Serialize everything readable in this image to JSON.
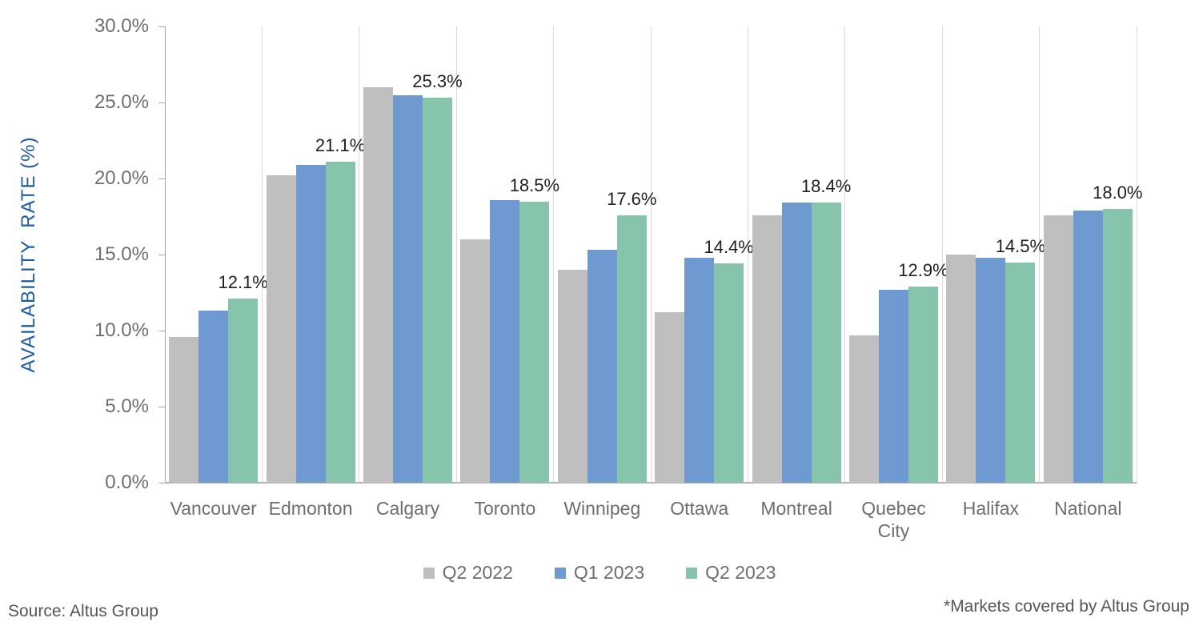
{
  "chart_data": {
    "type": "bar",
    "title": "",
    "xlabel": "",
    "ylabel": "AVAILABILITY  RATE (%)",
    "ylim": [
      0,
      30
    ],
    "ytick_step": 5,
    "ytick_labels": [
      "30.0%",
      "25.0%",
      "20.0%",
      "15.0%",
      "10.0%",
      "5.0%",
      "0.0%"
    ],
    "grid": "vertical-category-separators",
    "legend_position": "bottom",
    "categories": [
      "Vancouver",
      "Edmonton",
      "Calgary",
      "Toronto",
      "Winnipeg",
      "Ottawa",
      "Montreal",
      "Quebec City",
      "Halifax",
      "National"
    ],
    "series": [
      {
        "name": "Q2 2022",
        "color": "#bfbfbf",
        "values": [
          9.6,
          20.2,
          26.0,
          16.0,
          14.0,
          11.2,
          17.6,
          9.7,
          15.0,
          17.6
        ]
      },
      {
        "name": "Q1 2023",
        "color": "#6f9ad1",
        "values": [
          11.3,
          20.9,
          25.5,
          18.6,
          15.3,
          14.8,
          18.4,
          12.7,
          14.8,
          17.9
        ]
      },
      {
        "name": "Q2 2023",
        "color": "#86c5ac",
        "values": [
          12.1,
          21.1,
          25.3,
          18.5,
          17.6,
          14.4,
          18.4,
          12.9,
          14.5,
          18.0
        ]
      }
    ],
    "data_labels": [
      "12.1%",
      "21.1%",
      "25.3%",
      "18.5%",
      "17.6%",
      "14.4%",
      "18.4%",
      "12.9%",
      "14.5%",
      "18.0%"
    ],
    "colors": {
      "axis_text": "#6e6e6e",
      "data_label_text": "#1f1f1f",
      "y_axis_title": "#1d5c9d",
      "gridline": "#d9d9d9",
      "axis_line": "#a8a8a8"
    }
  },
  "footer": {
    "source": "Source: Altus Group",
    "note": "*Markets covered by Altus Group"
  }
}
